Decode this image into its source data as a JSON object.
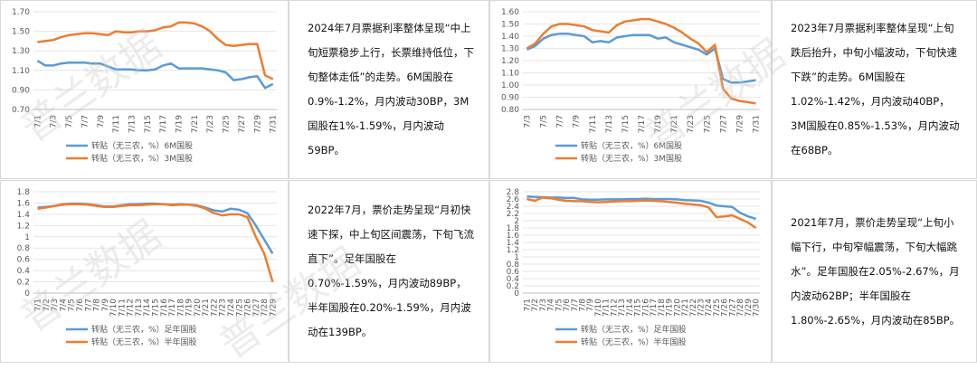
{
  "chart_data": [
    {
      "type": "line",
      "categories": [
        "7/1",
        null,
        "7/3",
        null,
        "7/5",
        null,
        "7/7",
        null,
        "7/9",
        null,
        "7/11",
        null,
        "7/13",
        null,
        "7/15",
        null,
        "7/17",
        null,
        "7/19",
        null,
        "7/21",
        null,
        "7/23",
        null,
        "7/25",
        null,
        "7/27",
        null,
        "7/29",
        null,
        "7/31"
      ],
      "series": [
        {
          "name": "转贴（无三农，%）6M国股",
          "color": "#5b9bd5",
          "values": [
            1.2,
            1.15,
            1.15,
            1.17,
            1.18,
            1.18,
            1.18,
            1.17,
            1.17,
            1.14,
            1.11,
            1.11,
            1.11,
            1.1,
            1.1,
            1.11,
            1.15,
            1.17,
            1.12,
            1.12,
            1.12,
            1.12,
            1.11,
            1.1,
            1.08,
            1.0,
            1.01,
            1.03,
            1.04,
            0.92,
            0.96
          ]
        },
        {
          "name": "转贴（无三农，%）3M国股",
          "color": "#ed7d31",
          "values": [
            1.39,
            1.4,
            1.41,
            1.44,
            1.46,
            1.47,
            1.48,
            1.48,
            1.47,
            1.46,
            1.5,
            1.49,
            1.49,
            1.5,
            1.5,
            1.51,
            1.54,
            1.55,
            1.59,
            1.59,
            1.58,
            1.55,
            1.5,
            1.42,
            1.36,
            1.35,
            1.36,
            1.37,
            1.37,
            1.05,
            1.01
          ]
        }
      ],
      "ylim": [
        0.7,
        1.7
      ],
      "yticks": [
        {
          "value": 0.7,
          "label": "0.70"
        },
        {
          "value": 0.9,
          "label": "0.90"
        },
        {
          "value": 1.1,
          "label": "1.10"
        },
        {
          "value": 1.3,
          "label": "1.30"
        },
        {
          "value": 1.5,
          "label": "1.50"
        },
        {
          "value": 1.7,
          "label": "1.70"
        }
      ],
      "grid": true
    },
    {
      "type": "line",
      "categories": [
        "7/3",
        null,
        "7/5",
        null,
        "7/7",
        null,
        "7/9",
        null,
        "7/11",
        null,
        "7/13",
        null,
        "7/15",
        null,
        "7/17",
        null,
        "7/19",
        null,
        "7/21",
        null,
        "7/23",
        null,
        "7/25",
        null,
        "7/27",
        null,
        "7/29",
        null,
        "7/31"
      ],
      "series": [
        {
          "name": "转贴（无三农，%）6M国股",
          "color": "#5b9bd5",
          "values": [
            1.29,
            1.32,
            1.38,
            1.41,
            1.42,
            1.42,
            1.41,
            1.4,
            1.35,
            1.36,
            1.35,
            1.39,
            1.4,
            1.41,
            1.41,
            1.41,
            1.38,
            1.39,
            1.35,
            1.33,
            1.31,
            1.29,
            1.25,
            1.3,
            1.05,
            1.02,
            1.02,
            1.03,
            1.04
          ]
        },
        {
          "name": "转贴（无三农，%）3M国股",
          "color": "#ed7d31",
          "values": [
            1.3,
            1.34,
            1.42,
            1.48,
            1.5,
            1.5,
            1.49,
            1.48,
            1.45,
            1.44,
            1.43,
            1.49,
            1.52,
            1.53,
            1.54,
            1.54,
            1.52,
            1.5,
            1.47,
            1.43,
            1.38,
            1.34,
            1.27,
            1.33,
            0.97,
            0.89,
            0.87,
            0.86,
            0.85
          ]
        }
      ],
      "ylim": [
        0.8,
        1.6
      ],
      "yticks": [
        {
          "value": 0.8,
          "label": "0.80"
        },
        {
          "value": 0.9,
          "label": "0.90"
        },
        {
          "value": 1,
          "label": "1.00"
        },
        {
          "value": 1.1,
          "label": "1.10"
        },
        {
          "value": 1.2,
          "label": "1.20"
        },
        {
          "value": 1.3,
          "label": "1.30"
        },
        {
          "value": 1.4,
          "label": "1.40"
        },
        {
          "value": 1.5,
          "label": "1.50"
        },
        {
          "value": 1.6,
          "label": "1.60"
        }
      ],
      "grid": true
    },
    {
      "type": "line",
      "categories": [
        "7/1",
        "7/2",
        "7/3",
        "7/4",
        "7/5",
        "7/6",
        "7/7",
        "7/8",
        "7/9",
        "7/10",
        "7/11",
        "7/12",
        "7/13",
        "7/14",
        "7/15",
        "7/16",
        "7/17",
        "7/18",
        "7/19",
        "7/20",
        "7/21",
        "7/22",
        "7/23",
        "7/24",
        "7/25",
        "7/26",
        "7/27",
        "7/28",
        "7/29"
      ],
      "series": [
        {
          "name": "转贴（无三农，%）足年国股",
          "color": "#5b9bd5",
          "values": [
            1.52,
            1.53,
            1.55,
            1.58,
            1.59,
            1.59,
            1.58,
            1.56,
            1.54,
            1.54,
            1.56,
            1.58,
            1.58,
            1.59,
            1.59,
            1.58,
            1.57,
            1.58,
            1.57,
            1.56,
            1.52,
            1.47,
            1.45,
            1.5,
            1.48,
            1.42,
            1.2,
            0.95,
            0.7
          ]
        },
        {
          "name": "转贴（无三农，%）半年国股",
          "color": "#ed7d31",
          "values": [
            1.5,
            1.52,
            1.55,
            1.57,
            1.58,
            1.58,
            1.57,
            1.55,
            1.53,
            1.53,
            1.55,
            1.56,
            1.56,
            1.57,
            1.58,
            1.58,
            1.56,
            1.57,
            1.57,
            1.55,
            1.5,
            1.42,
            1.38,
            1.4,
            1.4,
            1.35,
            1.0,
            0.7,
            0.2
          ]
        }
      ],
      "ylim": [
        0,
        1.8
      ],
      "yticks": [
        0,
        0.2,
        0.4,
        0.6,
        0.8,
        1,
        1.2,
        1.4,
        1.6,
        1.8
      ],
      "grid": true
    },
    {
      "type": "line",
      "categories": [
        "7/1",
        "7/2",
        "7/3",
        "7/4",
        "7/5",
        "7/6",
        "7/7",
        "7/8",
        "7/9",
        "7/10",
        "7/11",
        "7/12",
        "7/13",
        "7/14",
        "7/15",
        "7/16",
        "7/17",
        "7/18",
        "7/19",
        "7/20",
        "7/21",
        "7/22",
        "7/23",
        "7/24",
        "7/25",
        "7/26",
        "7/27",
        "7/28",
        "7/29",
        "7/30"
      ],
      "series": [
        {
          "name": "转贴（无三农，%）足年国股",
          "color": "#5b9bd5",
          "values": [
            2.67,
            2.66,
            2.65,
            2.64,
            2.64,
            2.63,
            2.63,
            2.59,
            2.58,
            2.58,
            2.59,
            2.59,
            2.59,
            2.6,
            2.6,
            2.61,
            2.6,
            2.6,
            2.6,
            2.59,
            2.57,
            2.56,
            2.55,
            2.5,
            2.42,
            2.4,
            2.38,
            2.22,
            2.12,
            2.05
          ]
        },
        {
          "name": "转贴（无三农，%）半年国股",
          "color": "#ed7d31",
          "values": [
            2.6,
            2.55,
            2.64,
            2.62,
            2.58,
            2.55,
            2.54,
            2.54,
            2.52,
            2.51,
            2.52,
            2.53,
            2.54,
            2.54,
            2.55,
            2.56,
            2.55,
            2.54,
            2.52,
            2.5,
            2.47,
            2.45,
            2.43,
            2.37,
            2.1,
            2.12,
            2.15,
            2.05,
            1.95,
            1.8
          ]
        }
      ],
      "ylim": [
        0,
        2.8
      ],
      "yticks": [
        0,
        0.2,
        0.4,
        0.6,
        0.8,
        1,
        1.2,
        1.4,
        1.6,
        1.8,
        2,
        2.2,
        2.4,
        2.6,
        2.8
      ],
      "grid": true
    }
  ],
  "texts": [
    "2024年7月票据利率整体呈现“中上旬短票稳步上行，长票维持低位，下旬整体走低”的走势。6M国股在0.9%-1.2%，月内波动30BP，3M国股在1%-1.59%，月内波动59BP。",
    "2023年7月票据利率整体呈现“上旬跌后抬升，中旬小幅波动，下旬快速下跌”的走势。6M国股在1.02%-1.42%，月内波动40BP，3M国股在0.85%-1.53%，月内波动在68BP。",
    "2022年7月，票价走势呈现“月初快速下探，中上旬区间震荡，下旬飞流直下”。足年国股在0.70%-1.59%，月内波动89BP，半年国股在0.20%-1.59%，月内波动在139BP。",
    "2021年7月，票价走势呈现“上旬小幅下行，中旬窄幅震荡，下旬大幅跳水”。足年国股在2.05%-2.67%，月内波动62BP；半年国股在1.80%-2.65%，月内波动在85BP。"
  ],
  "watermark": "普兰数据"
}
